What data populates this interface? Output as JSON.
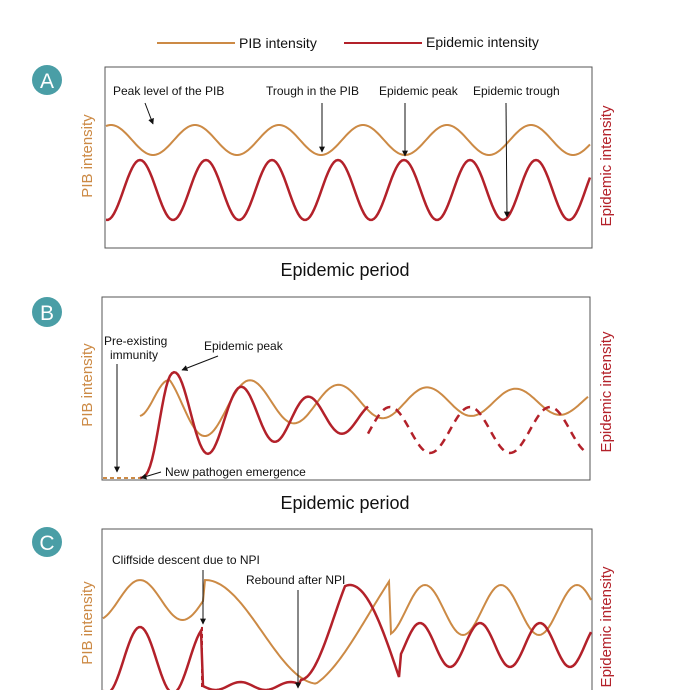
{
  "colors": {
    "pib": "#cc8a45",
    "epidemic": "#b3212a",
    "badge": "#4a9ea6",
    "frame": "#555555"
  },
  "legend": {
    "pib": "PIB intensity",
    "epidemic": "Epidemic intensity"
  },
  "panels": [
    {
      "id": "A",
      "badge": "A",
      "xlabel": "Epidemic period",
      "ylabel_left": "PIB intensity",
      "ylabel_right": "Epidemic intensity",
      "annotations": [
        {
          "text": "Peak level of the PIB"
        },
        {
          "text": "Trough in the PIB"
        },
        {
          "text": "Epidemic peak"
        },
        {
          "text": "Epidemic trough"
        }
      ]
    },
    {
      "id": "B",
      "badge": "B",
      "xlabel": "Epidemic period",
      "ylabel_left": "PIB intensity",
      "ylabel_right": "Epidemic intensity",
      "annotations": [
        {
          "line1": "Pre-existing",
          "line2": "immunity"
        },
        {
          "text": "Epidemic peak"
        },
        {
          "text": "New pathogen emergence"
        }
      ]
    },
    {
      "id": "C",
      "badge": "C",
      "ylabel_left": "PIB intensity",
      "ylabel_right": "Epidemic intensity",
      "annotations": [
        {
          "text": "Cliffside descent due to NPI"
        },
        {
          "text": "Rebound after NPI"
        }
      ]
    }
  ]
}
